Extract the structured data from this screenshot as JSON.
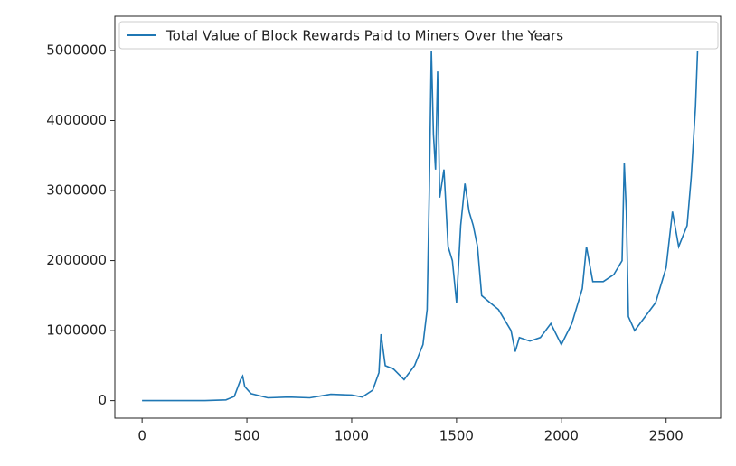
{
  "chart_data": {
    "type": "line",
    "x": [
      0,
      100,
      200,
      300,
      400,
      440,
      470,
      480,
      490,
      520,
      600,
      700,
      800,
      900,
      1000,
      1050,
      1100,
      1130,
      1140,
      1160,
      1200,
      1250,
      1300,
      1340,
      1360,
      1370,
      1380,
      1390,
      1400,
      1410,
      1420,
      1440,
      1460,
      1480,
      1500,
      1520,
      1540,
      1560,
      1580,
      1600,
      1620,
      1660,
      1700,
      1760,
      1780,
      1800,
      1850,
      1900,
      1950,
      2000,
      2050,
      2100,
      2120,
      2150,
      2200,
      2250,
      2290,
      2300,
      2310,
      2320,
      2350,
      2400,
      2450,
      2500,
      2530,
      2560,
      2600,
      2620,
      2640,
      2650
    ],
    "series": [
      {
        "name": "Total Value of Block Rewards Paid to Miners Over the Years",
        "color": "#1f77b4",
        "values": [
          0,
          0,
          0,
          0,
          10000,
          60000,
          300000,
          350000,
          200000,
          100000,
          40000,
          50000,
          40000,
          90000,
          80000,
          50000,
          150000,
          400000,
          950000,
          500000,
          450000,
          300000,
          500000,
          800000,
          1300000,
          3000000,
          5000000,
          3800000,
          3300000,
          4700000,
          2900000,
          3300000,
          2200000,
          2000000,
          1400000,
          2500000,
          3100000,
          2700000,
          2500000,
          2200000,
          1500000,
          1400000,
          1300000,
          1000000,
          700000,
          900000,
          850000,
          900000,
          1100000,
          800000,
          1100000,
          1600000,
          2200000,
          1700000,
          1700000,
          1800000,
          2000000,
          3400000,
          2700000,
          1200000,
          1000000,
          1200000,
          1400000,
          1900000,
          2700000,
          2200000,
          2500000,
          3200000,
          4200000,
          5000000
        ]
      }
    ],
    "xlim": [
      -130,
      2760
    ],
    "xticks": [
      0,
      500,
      1000,
      1500,
      2000,
      2500
    ],
    "ylim": [
      -250000,
      5490000
    ],
    "yticks": [
      0,
      1000000,
      2000000,
      3000000,
      4000000,
      5000000
    ],
    "legend": "upper left"
  }
}
